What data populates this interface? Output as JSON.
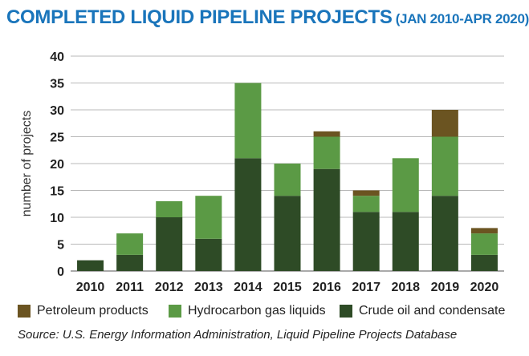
{
  "title_main": "COMPLETED LIQUID PIPELINE PROJECTS",
  "title_sub": "(JAN 2010-APR 2020)",
  "source": "Source: U.S. Energy Information Administration, Liquid Pipeline Projects Database",
  "colors": {
    "title": "#1a75bb",
    "crude": "#2e4b26",
    "hgl": "#5b9a45",
    "petroleum": "#6b5421",
    "grid": "#b8b8b8"
  },
  "chart_data": {
    "type": "bar",
    "stacked": true,
    "categories": [
      "2010",
      "2011",
      "2012",
      "2013",
      "2014",
      "2015",
      "2016",
      "2017",
      "2018",
      "2019",
      "2020"
    ],
    "series": [
      {
        "name": "Crude oil and condensate",
        "values": [
          2,
          3,
          10,
          6,
          21,
          14,
          19,
          11,
          11,
          14,
          3
        ]
      },
      {
        "name": "Hydrocarbon gas liquids",
        "values": [
          0,
          4,
          3,
          8,
          14,
          6,
          6,
          3,
          10,
          11,
          4
        ]
      },
      {
        "name": "Petroleum products",
        "values": [
          0,
          0,
          0,
          0,
          0,
          0,
          1,
          1,
          0,
          5,
          1
        ]
      }
    ],
    "ylabel": "number of projects",
    "ylim": [
      0,
      40
    ],
    "yticks": [
      0,
      5,
      10,
      15,
      20,
      25,
      30,
      35,
      40
    ],
    "grid": true
  },
  "legend": [
    {
      "label": "Petroleum products",
      "color": "#6b5421"
    },
    {
      "label": "Hydrocarbon gas liquids",
      "color": "#5b9a45"
    },
    {
      "label": "Crude oil and condensate",
      "color": "#2e4b26"
    }
  ]
}
